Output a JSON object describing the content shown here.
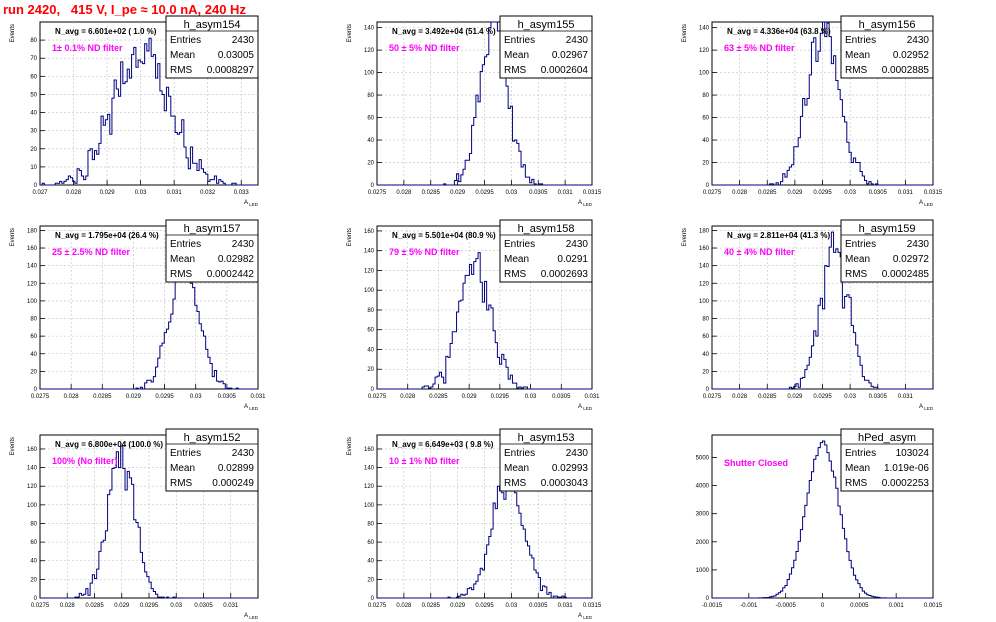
{
  "canvas": {
    "title": "run 2420,   415 V, I_pe ≈ 10.0 nA, 240 Hz",
    "colors": {
      "title": "#ff0000",
      "histogram": "#000080",
      "annotation": "#ff00ff",
      "grid": "#c0c0c0",
      "axis": "#000000"
    }
  },
  "stat_labels": {
    "entries": "Entries",
    "mean": "Mean",
    "rms": "RMS"
  },
  "chart_data": [
    {
      "type": "histogram",
      "name": "h_asym154",
      "ylabel": "Events",
      "xlabel": "A_LED",
      "xlim": [
        0.027,
        0.0335
      ],
      "xticks": [
        0.027,
        0.028,
        0.029,
        0.03,
        0.031,
        0.032,
        0.033
      ],
      "xtick_labels": [
        "0.027",
        "0.028",
        "0.029",
        "0.03",
        "0.031",
        "0.032",
        "0.033"
      ],
      "ylim": [
        0,
        90
      ],
      "yticks": [
        0,
        10,
        20,
        30,
        40,
        50,
        60,
        70,
        80
      ],
      "navg": "N_avg = 6.601e+02 ( 1.0 %)",
      "filter": "1± 0.1% ND filter",
      "stats": {
        "entries": "2430",
        "mean": "0.03005",
        "rms": "0.0008297"
      },
      "grid": true,
      "shape": {
        "kind": "gaussian",
        "mean": 0.03005,
        "sigma": 0.00083,
        "nbins": 100,
        "entries": 2430
      }
    },
    {
      "type": "histogram",
      "name": "h_asym155",
      "ylabel": "Events",
      "xlabel": "A_LED",
      "xlim": [
        0.0275,
        0.0315
      ],
      "xticks": [
        0.0275,
        0.028,
        0.0285,
        0.029,
        0.0295,
        0.03,
        0.0305,
        0.031,
        0.0315
      ],
      "xtick_labels": [
        "0.0275",
        "0.028",
        "0.0285",
        "0.029",
        "0.0295",
        "0.03",
        "0.0305",
        "0.031",
        "0.0315"
      ],
      "ylim": [
        0,
        145
      ],
      "yticks": [
        0,
        20,
        40,
        60,
        80,
        100,
        120,
        140
      ],
      "navg": "N_avg = 3.492e+04 (51.4 %)",
      "filter": "50 ± 5% ND filter",
      "stats": {
        "entries": "2430",
        "mean": "0.02967",
        "rms": "0.0002604"
      },
      "grid": true,
      "shape": {
        "kind": "gaussian",
        "mean": 0.02967,
        "sigma": 0.00026,
        "nbins": 100,
        "entries": 2430
      }
    },
    {
      "type": "histogram",
      "name": "h_asym156",
      "ylabel": "Events",
      "xlabel": "A_LED",
      "xlim": [
        0.0275,
        0.0315
      ],
      "xticks": [
        0.0275,
        0.028,
        0.0285,
        0.029,
        0.0295,
        0.03,
        0.0305,
        0.031,
        0.0315
      ],
      "xtick_labels": [
        "0.0275",
        "0.028",
        "0.0285",
        "0.029",
        "0.0295",
        "0.03",
        "0.0305",
        "0.031",
        "0.0315"
      ],
      "ylim": [
        0,
        145
      ],
      "yticks": [
        0,
        20,
        40,
        60,
        80,
        100,
        120,
        140
      ],
      "navg": "N_avg = 4.336e+04 (63.8 %)",
      "filter": "63 ± 5% ND filter",
      "stats": {
        "entries": "2430",
        "mean": "0.02952",
        "rms": "0.0002885"
      },
      "grid": true,
      "shape": {
        "kind": "gaussian",
        "mean": 0.02952,
        "sigma": 0.00029,
        "nbins": 100,
        "entries": 2430
      }
    },
    {
      "type": "histogram",
      "name": "h_asym157",
      "ylabel": "Events",
      "xlabel": "A_LED",
      "xlim": [
        0.0275,
        0.031
      ],
      "xticks": [
        0.0275,
        0.028,
        0.0285,
        0.029,
        0.0295,
        0.03,
        0.0305,
        0.031
      ],
      "xtick_labels": [
        "0.0275",
        "0.028",
        "0.0285",
        "0.029",
        "0.0295",
        "0.03",
        "0.0305",
        "0.031"
      ],
      "ylim": [
        0,
        185
      ],
      "yticks": [
        0,
        20,
        40,
        60,
        80,
        100,
        120,
        140,
        160,
        180
      ],
      "navg": "N_avg = 1.795e+04 (26.4 %)",
      "filter": "25 ± 2.5% ND filter",
      "stats": {
        "entries": "2430",
        "mean": "0.02982",
        "rms": "0.0002442"
      },
      "grid": true,
      "shape": {
        "kind": "gaussian",
        "mean": 0.02982,
        "sigma": 0.00024,
        "nbins": 100,
        "entries": 2430
      }
    },
    {
      "type": "histogram",
      "name": "h_asym158",
      "ylabel": "Events",
      "xlabel": "A_LED",
      "xlim": [
        0.0275,
        0.031
      ],
      "xticks": [
        0.0275,
        0.028,
        0.0285,
        0.029,
        0.0295,
        0.03,
        0.0305,
        0.031
      ],
      "xtick_labels": [
        "0.0275",
        "0.028",
        "0.0285",
        "0.029",
        "0.0295",
        "0.03",
        "0.0305",
        "0.031"
      ],
      "ylim": [
        0,
        165
      ],
      "yticks": [
        0,
        20,
        40,
        60,
        80,
        100,
        120,
        140,
        160
      ],
      "navg": "N_avg = 5.501e+04 (80.9 %)",
      "filter": "79 ± 5% ND filter",
      "stats": {
        "entries": "2430",
        "mean": "0.0291",
        "rms": "0.0002693"
      },
      "grid": true,
      "shape": {
        "kind": "gaussian",
        "mean": 0.0291,
        "sigma": 0.00027,
        "nbins": 100,
        "entries": 2430
      }
    },
    {
      "type": "histogram",
      "name": "h_asym159",
      "ylabel": "Events",
      "xlabel": "A_LED",
      "xlim": [
        0.0275,
        0.0315
      ],
      "xticks": [
        0.0275,
        0.028,
        0.0285,
        0.029,
        0.0295,
        0.03,
        0.0305,
        0.031
      ],
      "xtick_labels": [
        "0.0275",
        "0.028",
        "0.0285",
        "0.029",
        "0.0295",
        "0.03",
        "0.0305",
        "0.031"
      ],
      "ylim": [
        0,
        185
      ],
      "yticks": [
        0,
        20,
        40,
        60,
        80,
        100,
        120,
        140,
        160,
        180
      ],
      "navg": "N_avg = 2.811e+04 (41.3 %)",
      "filter": "40 ± 4% ND filter",
      "stats": {
        "entries": "2430",
        "mean": "0.02972",
        "rms": "0.0002485"
      },
      "grid": true,
      "shape": {
        "kind": "gaussian",
        "mean": 0.02972,
        "sigma": 0.00025,
        "nbins": 100,
        "entries": 2430
      }
    },
    {
      "type": "histogram",
      "name": "h_asym152",
      "ylabel": "Events",
      "xlabel": "A_LED",
      "xlim": [
        0.0275,
        0.0315
      ],
      "xticks": [
        0.0275,
        0.028,
        0.0285,
        0.029,
        0.0295,
        0.03,
        0.0305,
        0.031
      ],
      "xtick_labels": [
        "0.0275",
        "0.028",
        "0.0285",
        "0.029",
        "0.0295",
        "0.03",
        "0.0305",
        "0.031"
      ],
      "ylim": [
        0,
        175
      ],
      "yticks": [
        0,
        20,
        40,
        60,
        80,
        100,
        120,
        140,
        160
      ],
      "navg": "N_avg = 6.800e+04 (100.0 %)",
      "filter": "100% (No filter)",
      "stats": {
        "entries": "2430",
        "mean": "0.02899",
        "rms": "0.000249"
      },
      "grid": true,
      "shape": {
        "kind": "gaussian",
        "mean": 0.02899,
        "sigma": 0.00025,
        "nbins": 100,
        "entries": 2430
      }
    },
    {
      "type": "histogram",
      "name": "h_asym153",
      "ylabel": "Events",
      "xlabel": "A_LED",
      "xlim": [
        0.0275,
        0.0315
      ],
      "xticks": [
        0.0275,
        0.028,
        0.0285,
        0.029,
        0.0295,
        0.03,
        0.0305,
        0.031,
        0.0315
      ],
      "xtick_labels": [
        "0.0275",
        "0.028",
        "0.0285",
        "0.029",
        "0.0295",
        "0.03",
        "0.0305",
        "0.031",
        "0.0315"
      ],
      "ylim": [
        0,
        175
      ],
      "yticks": [
        0,
        20,
        40,
        60,
        80,
        100,
        120,
        140,
        160
      ],
      "navg": "N_avg = 6.649e+03 ( 9.8 %)",
      "filter": "10 ± 1% ND filter",
      "stats": {
        "entries": "2430",
        "mean": "0.02993",
        "rms": "0.0003043"
      },
      "grid": true,
      "shape": {
        "kind": "gaussian",
        "mean": 0.02993,
        "sigma": 0.0003,
        "nbins": 100,
        "entries": 2430
      }
    },
    {
      "type": "histogram",
      "name": "hPed_asym",
      "ylabel": "",
      "xlabel": "",
      "xlim": [
        -0.0015,
        0.0015
      ],
      "xticks": [
        -0.0015,
        -0.001,
        -0.0005,
        0,
        0.0005,
        0.001,
        0.0015
      ],
      "xtick_labels": [
        "-0.0015",
        "-0.001",
        "-0.0005",
        "0",
        "0.0005",
        "0.001",
        "0.0015"
      ],
      "ylim": [
        0,
        5800
      ],
      "yticks": [
        0,
        1000,
        2000,
        3000,
        4000,
        5000
      ],
      "navg": "",
      "filter": "Shutter Closed",
      "stats": {
        "entries": "103024",
        "mean": "1.019e-06",
        "rms": "0.0002253"
      },
      "grid": false,
      "shape": {
        "kind": "gaussian",
        "mean": 1e-06,
        "sigma": 0.000225,
        "nbins": 100,
        "entries": 103024
      }
    }
  ]
}
